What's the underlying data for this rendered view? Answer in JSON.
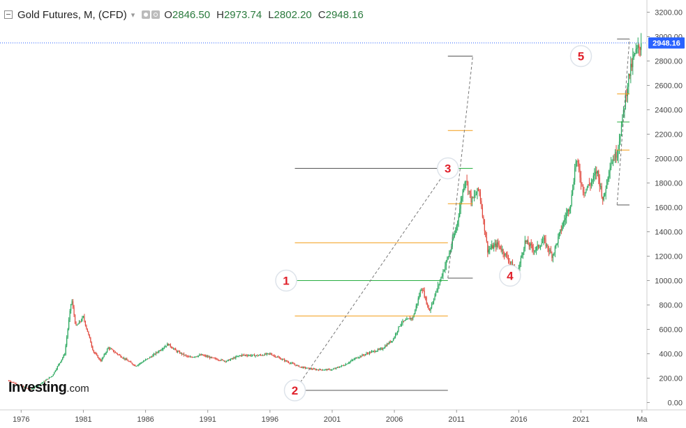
{
  "legend": {
    "title": "Gold Futures, M, (CFD)",
    "caret": "▾",
    "open_key": "O",
    "open": "2846.50",
    "high_key": "H",
    "high": "2973.74",
    "low_key": "L",
    "low": "2802.20",
    "close_key": "C",
    "close": "2948.16"
  },
  "logo": {
    "brand": "Investing",
    "suffix": ".com"
  },
  "colors": {
    "up": "#26a65b",
    "down": "#e0453a",
    "orange": "#f39c12",
    "green": "#27ae40",
    "label": "#e0202a",
    "price_badge": "#2962ff"
  },
  "chart_data": {
    "type": "candlestick",
    "title": "Gold Futures, M, (CFD)",
    "x_tick_labels": [
      "1976",
      "1981",
      "1986",
      "1991",
      "1996",
      "2001",
      "2006",
      "2011",
      "2016",
      "2021",
      "Ma"
    ],
    "x_tick_years": [
      1976,
      1981,
      1986,
      1991,
      1996,
      2001,
      2006,
      2011,
      2016,
      2021,
      2025.9
    ],
    "x_range": [
      1974.3,
      2026.3
    ],
    "y_tick_labels": [
      "0.00",
      "200.00",
      "400.00",
      "600.00",
      "800.00",
      "1000.00",
      "1200.00",
      "1400.00",
      "1600.00",
      "1800.00",
      "2000.00",
      "2200.00",
      "2400.00",
      "2600.00",
      "2800.00",
      "3000.00",
      "3200.00"
    ],
    "y_range": [
      -60,
      3300
    ],
    "last_price": 2948.16,
    "last_price_label": "2948.16",
    "price_keypoints": [
      [
        1975.0,
        180
      ],
      [
        1976.7,
        105
      ],
      [
        1977.5,
        150
      ],
      [
        1978.5,
        220
      ],
      [
        1979.5,
        400
      ],
      [
        1980.05,
        850
      ],
      [
        1980.4,
        620
      ],
      [
        1981.0,
        700
      ],
      [
        1981.8,
        420
      ],
      [
        1982.4,
        340
      ],
      [
        1983.0,
        450
      ],
      [
        1984.0,
        380
      ],
      [
        1985.2,
        300
      ],
      [
        1986.5,
        380
      ],
      [
        1987.8,
        480
      ],
      [
        1988.5,
        420
      ],
      [
        1989.5,
        370
      ],
      [
        1990.5,
        390
      ],
      [
        1991.5,
        360
      ],
      [
        1992.5,
        340
      ],
      [
        1993.7,
        390
      ],
      [
        1995.0,
        385
      ],
      [
        1996.0,
        400
      ],
      [
        1997.5,
        330
      ],
      [
        1998.5,
        290
      ],
      [
        1999.7,
        270
      ],
      [
        2001.0,
        270
      ],
      [
        2002.0,
        310
      ],
      [
        2003.0,
        370
      ],
      [
        2004.0,
        410
      ],
      [
        2005.0,
        440
      ],
      [
        2005.9,
        520
      ],
      [
        2006.5,
        650
      ],
      [
        2007.5,
        700
      ],
      [
        2008.2,
        950
      ],
      [
        2008.8,
        750
      ],
      [
        2009.5,
        950
      ],
      [
        2010.5,
        1250
      ],
      [
        2011.0,
        1450
      ],
      [
        2011.7,
        1850
      ],
      [
        2012.2,
        1650
      ],
      [
        2012.8,
        1750
      ],
      [
        2013.5,
        1250
      ],
      [
        2014.3,
        1300
      ],
      [
        2015.0,
        1200
      ],
      [
        2015.9,
        1060
      ],
      [
        2016.5,
        1320
      ],
      [
        2017.3,
        1250
      ],
      [
        2018.0,
        1330
      ],
      [
        2018.7,
        1200
      ],
      [
        2019.5,
        1450
      ],
      [
        2020.2,
        1650
      ],
      [
        2020.6,
        2000
      ],
      [
        2021.2,
        1730
      ],
      [
        2021.8,
        1800
      ],
      [
        2022.3,
        1900
      ],
      [
        2022.8,
        1650
      ],
      [
        2023.3,
        1950
      ],
      [
        2023.9,
        2050
      ],
      [
        2024.3,
        2300
      ],
      [
        2024.8,
        2650
      ],
      [
        2025.3,
        2850
      ],
      [
        2025.9,
        2948
      ]
    ],
    "wave_labels": [
      {
        "text": "1",
        "x": 1997.3,
        "y": 1000
      },
      {
        "text": "2",
        "x": 1998.0,
        "y": 100
      },
      {
        "text": "3",
        "x": 2010.3,
        "y": 1920
      },
      {
        "text": "4",
        "x": 2015.3,
        "y": 1040
      },
      {
        "text": "5",
        "x": 2021.0,
        "y": 2840
      }
    ],
    "fib_levels_left": [
      {
        "y": 1920,
        "x0": 1998.0,
        "x1": 2010.3,
        "color": "#555555"
      },
      {
        "y": 1310,
        "x0": 1998.0,
        "x1": 2010.3,
        "color": "#f39c12"
      },
      {
        "y": 1000,
        "x0": 1998.0,
        "x1": 2010.3,
        "color": "#27ae40"
      },
      {
        "y": 710,
        "x0": 1998.0,
        "x1": 2010.3,
        "color": "#f39c12"
      },
      {
        "y": 100,
        "x0": 1998.0,
        "x1": 2010.3,
        "color": "#555555"
      }
    ],
    "fib_levels_mid": [
      {
        "y": 2840,
        "x0": 2010.3,
        "x1": 2012.3,
        "color": "#555555"
      },
      {
        "y": 2230,
        "x0": 2010.3,
        "x1": 2012.3,
        "color": "#f39c12"
      },
      {
        "y": 1920,
        "x0": 2010.6,
        "x1": 2012.3,
        "color": "#27ae40"
      },
      {
        "y": 1630,
        "x0": 2010.3,
        "x1": 2012.3,
        "color": "#f39c12"
      },
      {
        "y": 1020,
        "x0": 2010.3,
        "x1": 2012.3,
        "color": "#555555"
      }
    ],
    "fib_levels_right": [
      {
        "y": 2980,
        "x0": 2023.9,
        "x1": 2024.9,
        "color": "#555555"
      },
      {
        "y": 2530,
        "x0": 2023.9,
        "x1": 2024.9,
        "color": "#f39c12"
      },
      {
        "y": 2300,
        "x0": 2023.9,
        "x1": 2024.9,
        "color": "#27ae40"
      },
      {
        "y": 2070,
        "x0": 2023.9,
        "x1": 2024.9,
        "color": "#f39c12"
      },
      {
        "y": 1620,
        "x0": 2023.9,
        "x1": 2024.9,
        "color": "#555555"
      }
    ],
    "dashed_lines": [
      {
        "x0": 1998.0,
        "y0": 100,
        "x1": 2010.3,
        "y1": 1920
      },
      {
        "x0": 2010.3,
        "y0": 1020,
        "x1": 2012.3,
        "y1": 2840
      },
      {
        "x0": 2023.9,
        "y0": 1620,
        "x1": 2024.9,
        "y1": 2980
      }
    ]
  }
}
